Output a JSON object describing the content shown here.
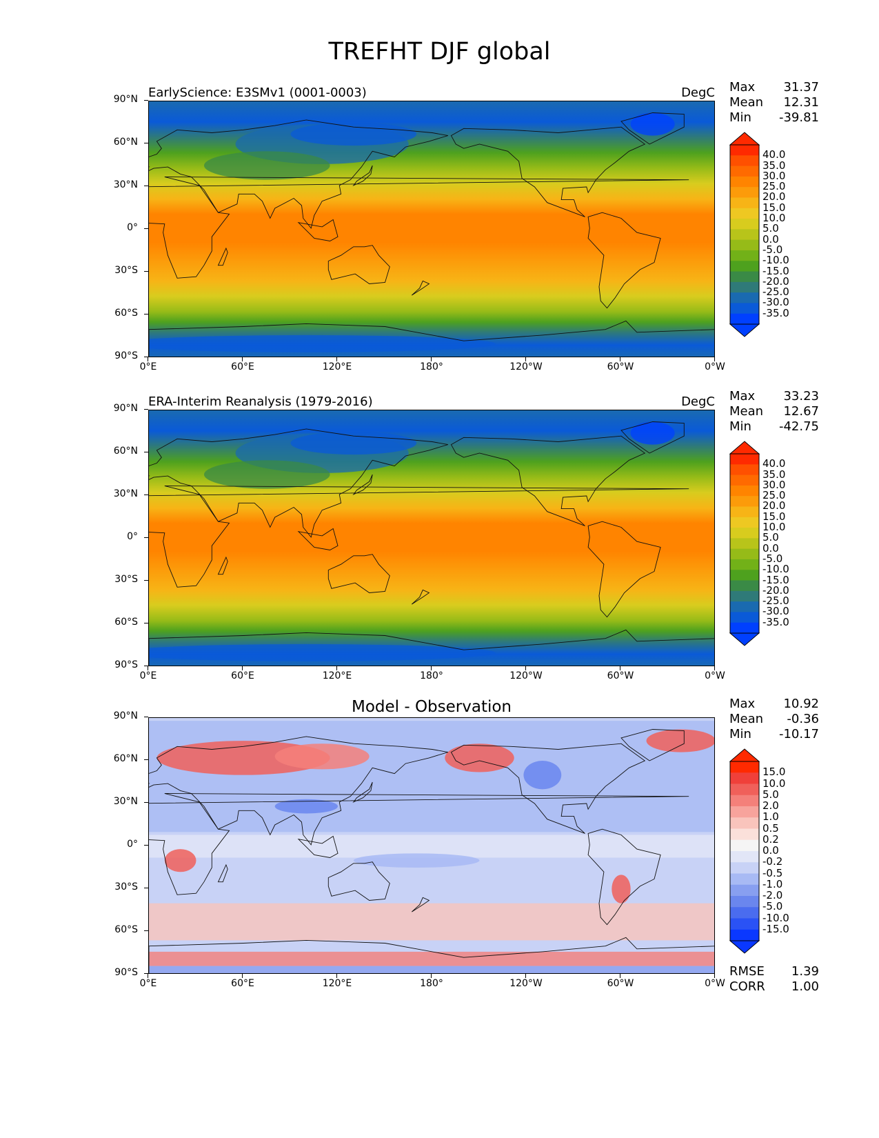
{
  "title": "TREFHT DJF global",
  "panels": [
    {
      "id": "test",
      "left_title": "EarlyScience: E3SMv1 (0001-0003)",
      "right_title": "DegC",
      "center_title": "",
      "stats": [
        {
          "label": "Max",
          "value": "31.37"
        },
        {
          "label": "Mean",
          "value": "12.31"
        },
        {
          "label": "Min",
          "value": "-39.81"
        }
      ],
      "colorbar": [
        "40.0",
        "35.0",
        "30.0",
        "25.0",
        "20.0",
        "15.0",
        "10.0",
        "5.0",
        "0.0",
        "-5.0",
        "-10.0",
        "-15.0",
        "-20.0",
        "-25.0",
        "-30.0",
        "-35.0"
      ],
      "colors": [
        "#ff2a00",
        "#ff5000",
        "#ff6a00",
        "#ff8400",
        "#fc9b0a",
        "#f7b416",
        "#eec822",
        "#d8cc1e",
        "#b8c41a",
        "#96bb18",
        "#72b118",
        "#4ea11e",
        "#3a8a46",
        "#2f7a78",
        "#1a6ab0",
        "#0a5ad8",
        "#0040ff"
      ],
      "metrics": []
    },
    {
      "id": "reference",
      "left_title": "ERA-Interim Reanalysis (1979-2016)",
      "right_title": "DegC",
      "center_title": "",
      "stats": [
        {
          "label": "Max",
          "value": "33.23"
        },
        {
          "label": "Mean",
          "value": "12.67"
        },
        {
          "label": "Min",
          "value": "-42.75"
        }
      ],
      "colorbar": [
        "40.0",
        "35.0",
        "30.0",
        "25.0",
        "20.0",
        "15.0",
        "10.0",
        "5.0",
        "0.0",
        "-5.0",
        "-10.0",
        "-15.0",
        "-20.0",
        "-25.0",
        "-30.0",
        "-35.0"
      ],
      "colors": [
        "#ff2a00",
        "#ff5000",
        "#ff6a00",
        "#ff8400",
        "#fc9b0a",
        "#f7b416",
        "#eec822",
        "#d8cc1e",
        "#b8c41a",
        "#96bb18",
        "#72b118",
        "#4ea11e",
        "#3a8a46",
        "#2f7a78",
        "#1a6ab0",
        "#0a5ad8",
        "#0040ff"
      ],
      "metrics": []
    },
    {
      "id": "difference",
      "left_title": "",
      "right_title": "",
      "center_title": "Model - Observation",
      "stats": [
        {
          "label": "Max",
          "value": "10.92"
        },
        {
          "label": "Mean",
          "value": "-0.36"
        },
        {
          "label": "Min",
          "value": "-10.17"
        }
      ],
      "colorbar": [
        "15.0",
        "10.0",
        "5.0",
        "2.0",
        "1.0",
        "0.5",
        "0.2",
        "0.0",
        "-0.2",
        "-0.5",
        "-1.0",
        "-2.0",
        "-5.0",
        "-10.0",
        "-15.0"
      ],
      "colors": [
        "#ff2a00",
        "#f0403a",
        "#f0605a",
        "#f4807a",
        "#f7a39c",
        "#f9c4bc",
        "#fbe0da",
        "#f5f5f5",
        "#e2e6f7",
        "#c8d2f6",
        "#a8baf4",
        "#889ff0",
        "#6a86ee",
        "#4a6cef",
        "#2a52f5",
        "#0a38ff"
      ],
      "metrics": [
        {
          "label": "RMSE",
          "value": "1.39"
        },
        {
          "label": "CORR",
          "value": "1.00"
        }
      ]
    }
  ],
  "y_ticks": [
    "90°N",
    "60°N",
    "30°N",
    "0°",
    "30°S",
    "60°S",
    "90°S"
  ],
  "x_ticks": [
    "0°E",
    "60°E",
    "120°E",
    "180°",
    "120°W",
    "60°W",
    "0°W"
  ]
}
